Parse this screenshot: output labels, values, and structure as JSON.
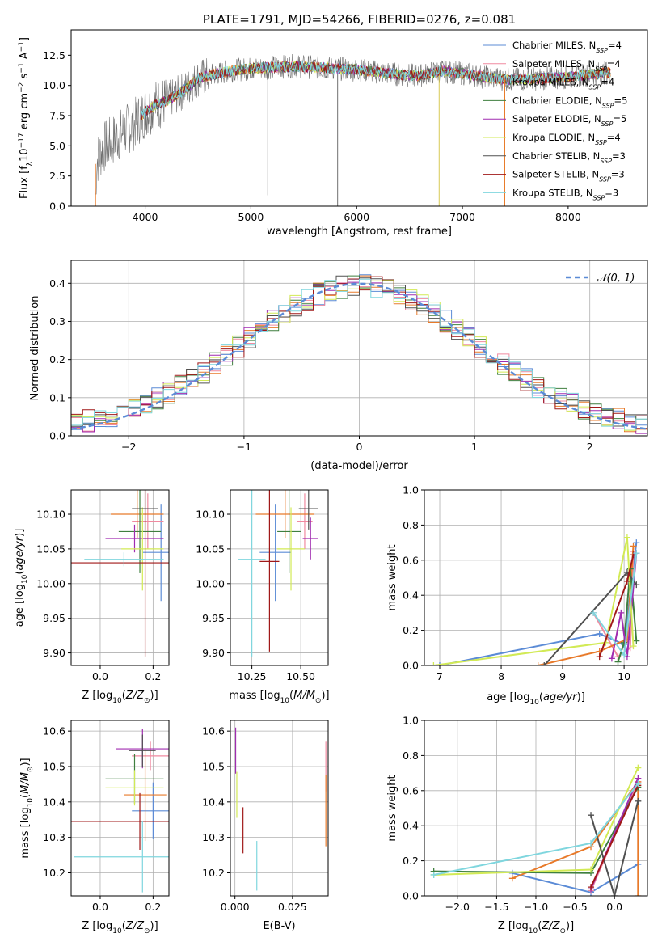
{
  "colors": {
    "chabrier_miles": "#5b8bd6",
    "salpeter_miles": "#f08aa0",
    "kroupa_miles": "#e87a2a",
    "chabrier_elodie": "#3f7f3f",
    "salpeter_elodie": "#a02cb0",
    "kroupa_elodie": "#d2ea55",
    "chabrier_stelib": "#505050",
    "salpeter_stelib": "#a01818",
    "kroupa_stelib": "#7fd6de",
    "normal_curve": "#5b8bd6",
    "data_spectrum": "#707070"
  },
  "legend_series": [
    {
      "key": "chabrier_miles",
      "prefix": "Chabrier MILES, N",
      "sub": "SSP",
      "suffix": "=4"
    },
    {
      "key": "salpeter_miles",
      "prefix": "Salpeter MILES, N",
      "sub": "SSP",
      "suffix": "=4"
    },
    {
      "key": "kroupa_miles",
      "prefix": "Kroupa MILES, N",
      "sub": "SSP",
      "suffix": "=4"
    },
    {
      "key": "chabrier_elodie",
      "prefix": "Chabrier ELODIE, N",
      "sub": "SSP",
      "suffix": "=5"
    },
    {
      "key": "salpeter_elodie",
      "prefix": "Salpeter ELODIE, N",
      "sub": "SSP",
      "suffix": "=5"
    },
    {
      "key": "kroupa_elodie",
      "prefix": "Kroupa ELODIE, N",
      "sub": "SSP",
      "suffix": "=4"
    },
    {
      "key": "chabrier_stelib",
      "prefix": "Chabrier STELIB, N",
      "sub": "SSP",
      "suffix": "=3"
    },
    {
      "key": "salpeter_stelib",
      "prefix": "Salpeter STELIB, N",
      "sub": "SSP",
      "suffix": "=3"
    },
    {
      "key": "kroupa_stelib",
      "prefix": "Kroupa STELIB, N",
      "sub": "SSP",
      "suffix": "=3"
    }
  ],
  "chart_data": [
    {
      "id": "spectrum",
      "type": "line",
      "title": "PLATE=1791, MJD=54266, FIBERID=0276, z=0.081",
      "xlabel": "wavelength [Angstrom, rest frame]",
      "ylabel": "Flux [fλ10⁻¹⁷ erg cm⁻² s⁻¹ A⁻¹]",
      "xlim": [
        3300,
        8750
      ],
      "ylim": [
        0,
        14.6
      ],
      "xticks": [
        4000,
        5000,
        6000,
        7000,
        8000
      ],
      "yticks": [
        0.0,
        2.5,
        5.0,
        7.5,
        10.0,
        12.5
      ],
      "grid": false,
      "legend": "upper right",
      "continuum_model": {
        "wavelength": [
          3530,
          3600,
          3700,
          3800,
          3900,
          4000,
          4100,
          4200,
          4300,
          4400,
          4500,
          4600,
          4700,
          4800,
          4900,
          5000,
          5200,
          5400,
          5600,
          5800,
          6000,
          6200,
          6400,
          6600,
          6800,
          7000,
          7200,
          7400,
          7600,
          7800,
          8000,
          8200,
          8400
        ],
        "flux": [
          3.5,
          4.8,
          5.5,
          6.2,
          6.8,
          7.8,
          8.4,
          8.7,
          9.2,
          9.8,
          10.6,
          10.8,
          11.0,
          11.2,
          11.3,
          11.4,
          11.5,
          11.6,
          11.5,
          11.4,
          11.3,
          11.1,
          10.9,
          10.8,
          11.2,
          11.0,
          10.7,
          10.5,
          10.5,
          10.6,
          10.7,
          10.9,
          11.1
        ]
      },
      "model_start_drops": [
        {
          "wavelength": 3530,
          "flux": 3.5
        },
        {
          "wavelength": 3960,
          "flux": 3.7
        }
      ],
      "data_spikes_down": [
        {
          "wavelength": 5160,
          "flux": 0.9
        },
        {
          "wavelength": 5820,
          "flux": 0.0
        },
        {
          "wavelength": 6780,
          "flux": 0.0
        },
        {
          "wavelength": 7400,
          "flux": 0.0
        }
      ]
    },
    {
      "id": "residuals",
      "type": "histogram",
      "xlabel": "(data-model)/error",
      "ylabel": "Normed distribution",
      "xlim": [
        -2.5,
        2.5
      ],
      "ylim": [
        0,
        0.46
      ],
      "xticks": [
        -2,
        -1,
        0,
        1,
        2
      ],
      "yticks": [
        0.0,
        0.1,
        0.2,
        0.3,
        0.4
      ],
      "grid": true,
      "legend": "upper right",
      "reference_curve": {
        "label": "𝒩(0, 1)",
        "style": "dashed",
        "mean": 0,
        "sigma": 1
      },
      "bin_width": 0.1,
      "envelope_heights": [
        0.02,
        0.03,
        0.04,
        0.05,
        0.06,
        0.06,
        0.08,
        0.09,
        0.1,
        0.1,
        0.12,
        0.13,
        0.15,
        0.16,
        0.17,
        0.18,
        0.19,
        0.2,
        0.21,
        0.23,
        0.24,
        0.26,
        0.27,
        0.29,
        0.3,
        0.31,
        0.33,
        0.34,
        0.35,
        0.36,
        0.37,
        0.38,
        0.39,
        0.4,
        0.39,
        0.38,
        0.38,
        0.37,
        0.37,
        0.36,
        0.35,
        0.34,
        0.33,
        0.32,
        0.31,
        0.3,
        0.28,
        0.27,
        0.25,
        0.24,
        0.23,
        0.21,
        0.2,
        0.19,
        0.17,
        0.15,
        0.14,
        0.12,
        0.1,
        0.09,
        0.08,
        0.07,
        0.06,
        0.06,
        0.05,
        0.05,
        0.04,
        0.04,
        0.03,
        0.03,
        0.02
      ]
    },
    {
      "id": "age_vs_Z",
      "type": "scatter",
      "xlabel": "Z [log10(Z/Z⊙)]",
      "ylabel": "age [log10(age/yr)]",
      "xlim": [
        -0.11,
        0.26
      ],
      "ylim": [
        9.882,
        10.135
      ],
      "xticks": [
        0.0,
        0.2
      ],
      "yticks": [
        9.9,
        9.95,
        10.0,
        10.05,
        10.1
      ],
      "grid": true,
      "points": [
        {
          "key": "chabrier_miles",
          "x": 0.23,
          "y": 10.045,
          "xerr": 0.07,
          "yerr": 0.07
        },
        {
          "key": "salpeter_miles",
          "x": 0.18,
          "y": 10.09,
          "xerr": 0.06,
          "yerr": 0.04
        },
        {
          "key": "kroupa_miles",
          "x": 0.14,
          "y": 10.1,
          "xerr": 0.1,
          "yerr": 0.035
        },
        {
          "key": "chabrier_elodie",
          "x": 0.15,
          "y": 10.075,
          "xerr": 0.08,
          "yerr": 0.06
        },
        {
          "key": "salpeter_elodie",
          "x": 0.13,
          "y": 10.065,
          "xerr": 0.11,
          "yerr": 0.02
        },
        {
          "key": "kroupa_elodie",
          "x": 0.16,
          "y": 10.05,
          "xerr": 0.08,
          "yerr": 0.06
        },
        {
          "key": "chabrier_stelib",
          "x": 0.17,
          "y": 10.108,
          "xerr": 0.05,
          "yerr": 0.03
        },
        {
          "key": "salpeter_stelib",
          "x": 0.17,
          "y": 10.03,
          "xerr": 0.28,
          "yerr": 0.135
        },
        {
          "key": "kroupa_stelib",
          "x": 0.09,
          "y": 10.035,
          "xerr": 0.15,
          "yerr": 0.01
        }
      ]
    },
    {
      "id": "age_vs_mass",
      "type": "scatter",
      "xlabel": "mass [log10(M/M⊙)]",
      "ylabel": "",
      "xlim": [
        10.14,
        10.64
      ],
      "ylim": [
        9.882,
        10.135
      ],
      "xticks": [
        10.25,
        10.5
      ],
      "yticks": [
        9.9,
        9.95,
        10.0,
        10.05,
        10.1
      ],
      "grid": true,
      "points": [
        {
          "key": "chabrier_miles",
          "x": 10.37,
          "y": 10.045,
          "xerr": 0.08,
          "yerr": 0.07
        },
        {
          "key": "salpeter_miles",
          "x": 10.52,
          "y": 10.09,
          "xerr": 0.04,
          "yerr": 0.04
        },
        {
          "key": "kroupa_miles",
          "x": 10.42,
          "y": 10.1,
          "xerr": 0.15,
          "yerr": 0.035
        },
        {
          "key": "chabrier_elodie",
          "x": 10.44,
          "y": 10.075,
          "xerr": 0.06,
          "yerr": 0.06
        },
        {
          "key": "salpeter_elodie",
          "x": 10.55,
          "y": 10.065,
          "xerr": 0.04,
          "yerr": 0.03
        },
        {
          "key": "kroupa_elodie",
          "x": 10.45,
          "y": 10.05,
          "xerr": 0.07,
          "yerr": 0.06
        },
        {
          "key": "chabrier_stelib",
          "x": 10.54,
          "y": 10.108,
          "xerr": 0.05,
          "yerr": 0.03
        },
        {
          "key": "salpeter_stelib",
          "x": 10.34,
          "y": 10.032,
          "xerr": 0.05,
          "yerr": 0.13
        },
        {
          "key": "kroupa_stelib",
          "x": 10.25,
          "y": 10.035,
          "xerr": 0.07,
          "yerr": 0.14
        }
      ]
    },
    {
      "id": "weight_vs_age",
      "type": "line",
      "xlabel": "age  [log10(age/yr)]",
      "ylabel": "mass weight",
      "xlim": [
        6.75,
        10.38
      ],
      "ylim": [
        0,
        1.0
      ],
      "xticks": [
        7,
        8,
        9,
        10
      ],
      "yticks": [
        0.0,
        0.2,
        0.4,
        0.6,
        0.8,
        1.0
      ],
      "grid": true,
      "series": [
        {
          "key": "chabrier_miles",
          "x": [
            7.0,
            9.6,
            10.0,
            10.2
          ],
          "y": [
            0.0,
            0.18,
            0.12,
            0.7
          ]
        },
        {
          "key": "salpeter_miles",
          "x": [
            9.5,
            9.9,
            10.1,
            10.15
          ],
          "y": [
            0.3,
            0.05,
            0.1,
            0.65
          ]
        },
        {
          "key": "kroupa_miles",
          "x": [
            8.6,
            9.6,
            10.05,
            10.15
          ],
          "y": [
            0.0,
            0.08,
            0.15,
            0.68
          ]
        },
        {
          "key": "chabrier_elodie",
          "x": [
            9.9,
            10.0,
            10.1,
            10.2
          ],
          "y": [
            0.02,
            0.13,
            0.55,
            0.14
          ]
        },
        {
          "key": "salpeter_elodie",
          "x": [
            9.8,
            9.95,
            10.05,
            10.2
          ],
          "y": [
            0.04,
            0.3,
            0.05,
            0.64
          ]
        },
        {
          "key": "kroupa_elodie",
          "x": [
            6.9,
            9.7,
            10.05,
            10.15
          ],
          "y": [
            0.0,
            0.13,
            0.73,
            0.11
          ]
        },
        {
          "key": "chabrier_stelib",
          "x": [
            8.7,
            10.05,
            10.2
          ],
          "y": [
            0.0,
            0.53,
            0.46
          ]
        },
        {
          "key": "salpeter_stelib",
          "x": [
            9.6,
            10.05,
            10.15
          ],
          "y": [
            0.05,
            0.48,
            0.63
          ]
        },
        {
          "key": "kroupa_stelib",
          "x": [
            9.5,
            10.0,
            10.2
          ],
          "y": [
            0.3,
            0.06,
            0.64
          ]
        }
      ]
    },
    {
      "id": "mass_vs_Z",
      "type": "scatter",
      "xlabel": "Z [log10(Z/Z⊙)]",
      "ylabel": "mass [log10(M/M⊙)]",
      "xlim": [
        -0.11,
        0.26
      ],
      "ylim": [
        10.135,
        10.63
      ],
      "xticks": [
        0.0,
        0.2
      ],
      "yticks": [
        10.2,
        10.3,
        10.4,
        10.5,
        10.6
      ],
      "grid": true,
      "points": [
        {
          "key": "chabrier_miles",
          "x": 0.2,
          "y": 10.375,
          "xerr": 0.08,
          "yerr": 0.08
        },
        {
          "key": "salpeter_miles",
          "x": 0.19,
          "y": 10.53,
          "xerr": 0.07,
          "yerr": 0.04
        },
        {
          "key": "kroupa_miles",
          "x": 0.17,
          "y": 10.42,
          "xerr": 0.08,
          "yerr": 0.13
        },
        {
          "key": "chabrier_elodie",
          "x": 0.13,
          "y": 10.465,
          "xerr": 0.11,
          "yerr": 0.07
        },
        {
          "key": "salpeter_elodie",
          "x": 0.16,
          "y": 10.55,
          "xerr": 0.1,
          "yerr": 0.055
        },
        {
          "key": "kroupa_elodie",
          "x": 0.13,
          "y": 10.44,
          "xerr": 0.11,
          "yerr": 0.05
        },
        {
          "key": "chabrier_stelib",
          "x": 0.16,
          "y": 10.545,
          "xerr": 0.05,
          "yerr": 0.045
        },
        {
          "key": "salpeter_stelib",
          "x": 0.15,
          "y": 10.345,
          "xerr": 0.28,
          "yerr": 0.08
        },
        {
          "key": "kroupa_stelib",
          "x": 0.16,
          "y": 10.245,
          "xerr": 0.26,
          "yerr": 0.1
        }
      ]
    },
    {
      "id": "mass_vs_ebv",
      "type": "scatter",
      "xlabel": "E(B-V)",
      "ylabel": "",
      "xlim": [
        -0.002,
        0.0405
      ],
      "ylim": [
        10.135,
        10.63
      ],
      "xticks": [
        0.0,
        0.025
      ],
      "xticklabels": [
        "0.000",
        "0.025"
      ],
      "yticks": [
        10.2,
        10.3,
        10.4,
        10.5,
        10.6
      ],
      "grid": true,
      "points": [
        {
          "key": "salpeter_elodie",
          "x": 0.0003,
          "y": 10.545,
          "yerr": 0.065
        },
        {
          "key": "kroupa_elodie",
          "x": 0.0008,
          "y": 10.42,
          "yerr": 0.065
        },
        {
          "key": "salpeter_stelib",
          "x": 0.0035,
          "y": 10.32,
          "yerr": 0.065
        },
        {
          "key": "kroupa_stelib",
          "x": 0.0095,
          "y": 10.22,
          "yerr": 0.07
        },
        {
          "key": "salpeter_miles",
          "x": 0.0395,
          "y": 10.5,
          "yerr": 0.07
        },
        {
          "key": "kroupa_miles",
          "x": 0.0395,
          "y": 10.375,
          "yerr": 0.1
        }
      ]
    },
    {
      "id": "weight_vs_Z",
      "type": "line",
      "xlabel": "Z [log10(Z/Z⊙)]",
      "ylabel": "mass weight",
      "xlim": [
        -2.42,
        0.42
      ],
      "ylim": [
        0,
        1.0
      ],
      "xticks": [
        -2.0,
        -1.5,
        -1.0,
        -0.5,
        0.0
      ],
      "yticks": [
        0.0,
        0.2,
        0.4,
        0.6,
        0.8,
        1.0
      ],
      "grid": true,
      "series": [
        {
          "key": "chabrier_miles",
          "x": [
            -1.3,
            -0.3,
            0.3
          ],
          "y": [
            0.13,
            0.02,
            0.18
          ]
        },
        {
          "key": "salpeter_miles",
          "x": [
            -0.3,
            0.3
          ],
          "y": [
            0.03,
            0.65
          ]
        },
        {
          "key": "kroupa_miles",
          "x": [
            -1.3,
            -0.3,
            0.3,
            0.3
          ],
          "y": [
            0.1,
            0.28,
            0.65,
            0.0
          ]
        },
        {
          "key": "chabrier_elodie",
          "x": [
            -2.3,
            -0.3,
            0.3
          ],
          "y": [
            0.14,
            0.13,
            0.62
          ]
        },
        {
          "key": "salpeter_elodie",
          "x": [
            -0.3,
            0.3
          ],
          "y": [
            0.04,
            0.67
          ]
        },
        {
          "key": "kroupa_elodie",
          "x": [
            -2.3,
            -0.3,
            0.3
          ],
          "y": [
            0.12,
            0.15,
            0.73
          ]
        },
        {
          "key": "chabrier_stelib",
          "x": [
            -0.3,
            0.0,
            0.3
          ],
          "y": [
            0.46,
            0.0,
            0.54
          ]
        },
        {
          "key": "salpeter_stelib",
          "x": [
            -0.3,
            0.3
          ],
          "y": [
            0.05,
            0.63
          ]
        },
        {
          "key": "kroupa_stelib",
          "x": [
            -2.3,
            -0.3,
            0.3
          ],
          "y": [
            0.12,
            0.3,
            0.64
          ]
        }
      ]
    }
  ]
}
